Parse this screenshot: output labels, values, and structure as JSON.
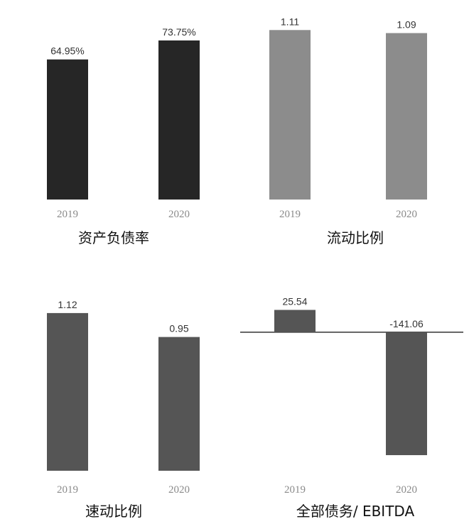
{
  "chart_data": [
    {
      "type": "bar",
      "title": "资产负债率",
      "categories": [
        "2019",
        "2020"
      ],
      "values": [
        64.95,
        73.75
      ],
      "value_labels": [
        "64.95%",
        "73.75%"
      ],
      "ylim": [
        0,
        80
      ],
      "color": "#262626"
    },
    {
      "type": "bar",
      "title": "流动比例",
      "categories": [
        "2019",
        "2020"
      ],
      "values": [
        1.11,
        1.09
      ],
      "value_labels": [
        "1.11",
        "1.09"
      ],
      "ylim": [
        0,
        1.13
      ],
      "color": "#8c8c8c"
    },
    {
      "type": "bar",
      "title": "速动比例",
      "categories": [
        "2019",
        "2020"
      ],
      "values": [
        1.12,
        0.95
      ],
      "value_labels": [
        "1.12",
        "0.95"
      ],
      "ylim": [
        0,
        1.17
      ],
      "color": "#555555"
    },
    {
      "type": "bar",
      "title": "全部债务/ EBITDA",
      "categories": [
        "2019",
        "2020"
      ],
      "values": [
        25.54,
        -141.06
      ],
      "value_labels": [
        "25.54",
        "-141.06"
      ],
      "ylim": [
        -150,
        30
      ],
      "color": "#555555",
      "baseline": true
    }
  ]
}
